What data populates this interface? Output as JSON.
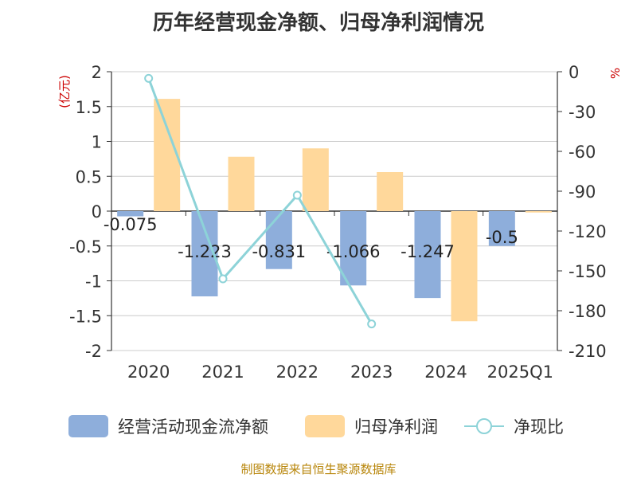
{
  "chart_data": {
    "type": "bar",
    "title": "历年经营现金净额、归母净利润情况",
    "categories": [
      "2020",
      "2021",
      "2022",
      "2023",
      "2024",
      "2025Q1"
    ],
    "series": [
      {
        "name": "经营活动现金流净额",
        "type": "bar",
        "axis": "left",
        "values": [
          -0.075,
          -1.223,
          -0.831,
          -1.066,
          -1.247,
          -0.5
        ],
        "data_labels": [
          "-0.075",
          "-1.223",
          "-0.831",
          "-1.066",
          "-1.247",
          "-0.5"
        ],
        "color": "#8eaedb"
      },
      {
        "name": "归母净利润",
        "type": "bar",
        "axis": "left",
        "values": [
          1.61,
          0.78,
          0.9,
          0.56,
          -1.58,
          -0.02
        ],
        "color": "#ffd89b"
      },
      {
        "name": "净现比",
        "type": "line",
        "axis": "right",
        "values": [
          -5,
          -156,
          -93,
          -190,
          null,
          null
        ],
        "color": "#8dd3d8"
      }
    ],
    "y_left": {
      "label": "(亿元)",
      "min": -2,
      "max": 2,
      "step": 0.5,
      "ticks": [
        "2",
        "1.5",
        "1",
        "0.5",
        "0",
        "-0.5",
        "-1",
        "-1.5",
        "-2"
      ]
    },
    "y_right": {
      "label": "%",
      "min": -210,
      "max": 0,
      "step": 30,
      "ticks": [
        "0",
        "-30",
        "-60",
        "-90",
        "-120",
        "-150",
        "-180",
        "-210"
      ]
    },
    "grid": true,
    "legend_position": "bottom"
  },
  "source": "制图数据来自恒生聚源数据库"
}
